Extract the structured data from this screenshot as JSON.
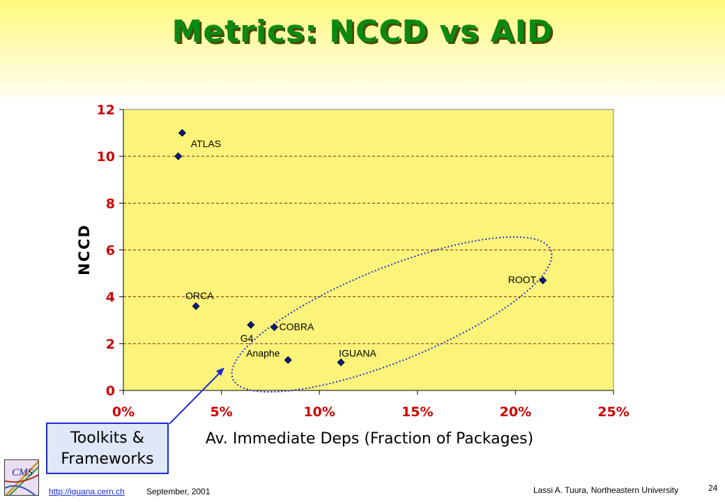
{
  "slide": {
    "title": "Metrics: NCCD vs AID",
    "callout_line1": "Toolkits &",
    "callout_line2": "Frameworks",
    "footer_link": "http://iguana.cern.ch",
    "footer_date": "September, 2001",
    "footer_author": "Lassi A. Tuura, Northeastern University",
    "page_number": "24",
    "logo_text": "CMS",
    "icons": [
      "cms-logo",
      "arrow"
    ]
  },
  "chart_data": {
    "type": "scatter",
    "title": "",
    "xlabel": "Av. Immediate Deps (Fraction of Packages)",
    "ylabel": "NCCD",
    "xlim": [
      0,
      0.25
    ],
    "ylim": [
      0,
      12
    ],
    "x_ticks": [
      "0%",
      "5%",
      "10%",
      "15%",
      "20%",
      "25%"
    ],
    "y_ticks": [
      "0",
      "2",
      "4",
      "6",
      "8",
      "10",
      "12"
    ],
    "grid": "horizontal dashed",
    "colors": {
      "plot_bg": "#fcf47a",
      "marker": "#0a1a8c",
      "tick_text": "#cc0000",
      "grid": "#8b1a1a",
      "ellipse": "#1b2ad6"
    },
    "series": [
      {
        "points": [
          {
            "label": "",
            "x": 0.03,
            "y": 11.0
          },
          {
            "label": "ATLAS",
            "x": 0.028,
            "y": 10.0
          },
          {
            "label": "ORCA",
            "x": 0.037,
            "y": 3.6
          },
          {
            "label": "G4",
            "x": 0.065,
            "y": 2.8
          },
          {
            "label": "COBRA",
            "x": 0.077,
            "y": 2.7
          },
          {
            "label": "Anaphe",
            "x": 0.084,
            "y": 1.3
          },
          {
            "label": "IGUANA",
            "x": 0.111,
            "y": 1.2
          },
          {
            "label": "ROOT",
            "x": 0.214,
            "y": 4.7
          }
        ]
      }
    ]
  }
}
